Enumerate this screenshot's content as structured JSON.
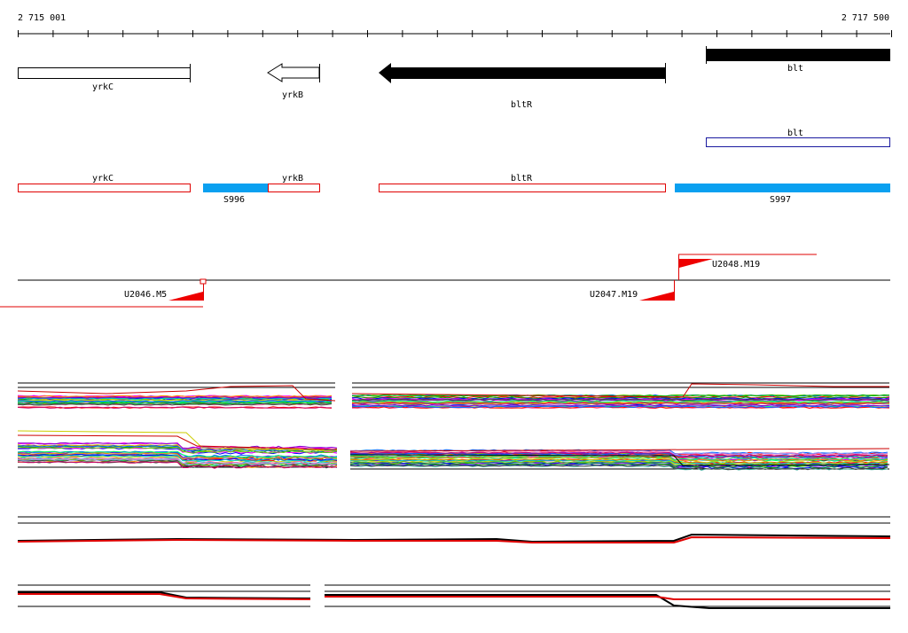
{
  "ruler": {
    "start_label": "2 715 001",
    "end_label": "2 717 500",
    "start": 2715001,
    "end": 2717500
  },
  "genes_top": [
    {
      "id": "yrkC",
      "label": "yrkC",
      "strand": "+",
      "fill": "#ffffff",
      "start": 2715001,
      "end": 2715500
    },
    {
      "id": "yrkB",
      "label": "yrkB",
      "strand": "-",
      "fill": "#ffffff",
      "start": 2715372,
      "end": 2715875
    },
    {
      "id": "bltR",
      "label": "bltR",
      "strand": "-",
      "fill": "#000000",
      "start": 2716040,
      "end": 2716870
    },
    {
      "id": "blt",
      "label": "blt",
      "strand": "+",
      "fill": "#000000",
      "start": 2716900,
      "end": 2717500
    }
  ],
  "blt_outline": {
    "label": "blt",
    "color": "#1a1aa0"
  },
  "annotation_row": {
    "red_boxes": [
      {
        "label": "yrkC",
        "start": 2715001,
        "end": 2715500
      },
      {
        "label": "yrkB",
        "start": 2715715,
        "end": 2715875
      },
      {
        "label": "bltR",
        "start": 2716040,
        "end": 2716870
      }
    ],
    "blue_bars": [
      {
        "label": "S996",
        "start": 2715540,
        "end": 2715715
      },
      {
        "label": "S997",
        "start": 2716900,
        "end": 2717500
      }
    ],
    "box_color": "#e00000",
    "bar_color": "#0aa0f0"
  },
  "promoters": [
    {
      "label": "U2046.M5"
    },
    {
      "label": "U2047.M19"
    },
    {
      "label": "U2048.M19"
    }
  ],
  "colors": {
    "promoter": "#ee0000",
    "axis": "#000000"
  }
}
